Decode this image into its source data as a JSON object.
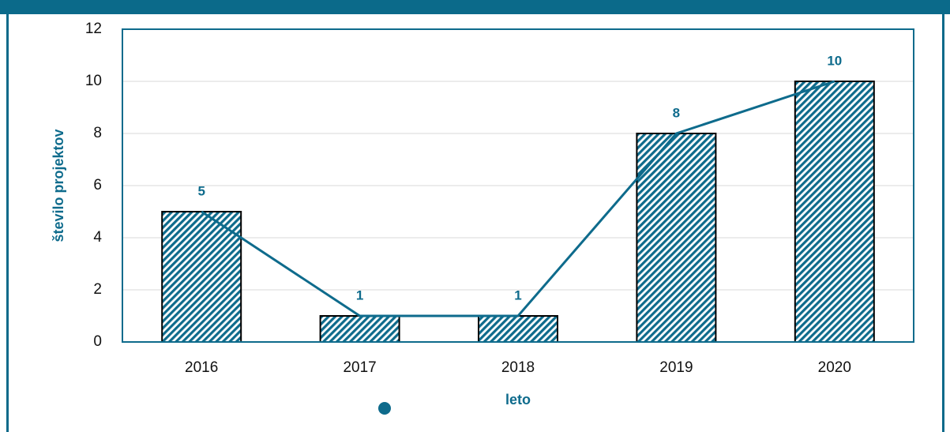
{
  "chart_data": {
    "type": "bar",
    "categories": [
      "2016",
      "2017",
      "2018",
      "2019",
      "2020"
    ],
    "values": [
      5,
      1,
      1,
      8,
      10
    ],
    "color": "#0e6b8c",
    "line": true,
    "line_color": "#0e6b8c",
    "xlabel": "leto",
    "ylabel": "število projektov",
    "ylim": [
      0,
      12
    ],
    "yticks": [
      0,
      2,
      4,
      6,
      8,
      10,
      12
    ],
    "grid": true
  }
}
